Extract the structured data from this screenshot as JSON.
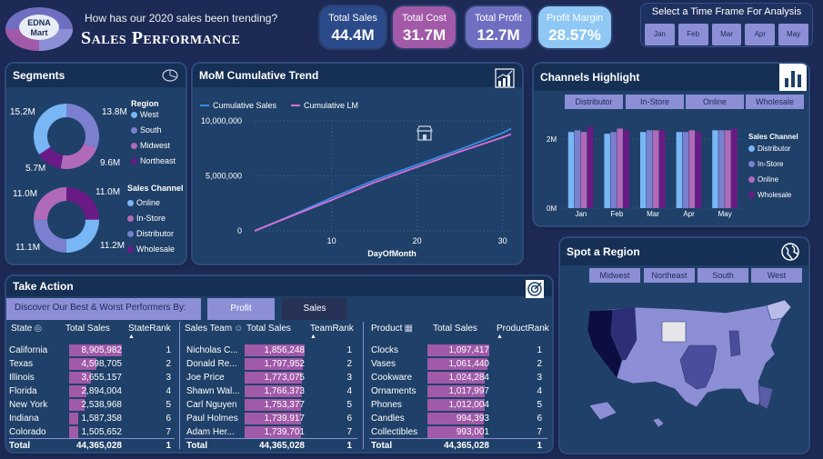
{
  "header": {
    "logo_line1": "EDNA",
    "logo_line2": "Mart",
    "question": "How has our 2020 sales been trending?",
    "title": "Sales Performance"
  },
  "kpis": [
    {
      "label": "Total Sales",
      "value": "44.4M",
      "bg": "#2b4a8a"
    },
    {
      "label": "Total Cost",
      "value": "31.7M",
      "bg": "#a25aa8"
    },
    {
      "label": "Total Profit",
      "value": "12.7M",
      "bg": "#6f6fc2"
    },
    {
      "label": "Profit Margin",
      "value": "28.57%",
      "bg": "#8fc8f4"
    }
  ],
  "timeframe": {
    "title": "Select a Time Frame For Analysis",
    "months": [
      "Jan",
      "Feb",
      "Mar",
      "Apr",
      "May"
    ]
  },
  "segments": {
    "title": "Segments",
    "region_title": "Region",
    "regions": [
      {
        "name": "West",
        "color": "#78b6f5"
      },
      {
        "name": "South",
        "color": "#7a7fd0"
      },
      {
        "name": "Midwest",
        "color": "#b06ab8"
      },
      {
        "name": "Northeast",
        "color": "#6a1a86"
      }
    ],
    "region_values": [
      "15.2M",
      "13.8M",
      "5.7M",
      "9.6M"
    ],
    "channel_title": "Sales Channel",
    "channels": [
      {
        "name": "Online",
        "color": "#78b6f5"
      },
      {
        "name": "In-Store",
        "color": "#b06ab8"
      },
      {
        "name": "Distributor",
        "color": "#7a7fd0"
      },
      {
        "name": "Wholesale",
        "color": "#6a1a86"
      }
    ],
    "channel_values": [
      "11.0M",
      "11.0M",
      "11.1M",
      "11.2M"
    ]
  },
  "mom": {
    "title": "MoM Cumulative Trend",
    "legend": [
      "Cumulative Sales",
      "Cumulative LM"
    ],
    "xlabel": "DayOfMonth"
  },
  "channels_highlight": {
    "title": "Channels Highlight",
    "filters": [
      "Distributor",
      "In-Store",
      "Online",
      "Wholesale"
    ],
    "legend_title": "Sales Channel",
    "legend": [
      "Distributor",
      "In-Store",
      "Online",
      "Wholesale"
    ]
  },
  "spot_region": {
    "title": "Spot a Region",
    "filters": [
      "Midwest",
      "Northeast",
      "South",
      "West"
    ]
  },
  "take_action": {
    "title": "Take Action",
    "discover": "Discover Our Best & Worst Performers By:",
    "tab_profit": "Profit",
    "tab_sales": "Sales",
    "state_table": {
      "headers": [
        "State",
        "Total Sales",
        "StateRank"
      ],
      "rows": [
        [
          "California",
          "8,905,982",
          "1"
        ],
        [
          "Texas",
          "4,598,705",
          "2"
        ],
        [
          "Illinois",
          "3,655,157",
          "3"
        ],
        [
          "Florida",
          "2,894,004",
          "4"
        ],
        [
          "New York",
          "2,538,968",
          "5"
        ],
        [
          "Indiana",
          "1,587,358",
          "6"
        ],
        [
          "Colorado",
          "1,505,652",
          "7"
        ]
      ],
      "total": [
        "Total",
        "44,365,028",
        "1"
      ]
    },
    "team_table": {
      "headers": [
        "Sales Team",
        "Total Sales",
        "TeamRank"
      ],
      "rows": [
        [
          "Nicholas C...",
          "1,856,248",
          "1"
        ],
        [
          "Donald Re...",
          "1,797,952",
          "2"
        ],
        [
          "Joe Price",
          "1,773,075",
          "3"
        ],
        [
          "Shawn Wal...",
          "1,766,373",
          "4"
        ],
        [
          "Carl Nguyen",
          "1,753,377",
          "5"
        ],
        [
          "Paul Holmes",
          "1,739,917",
          "6"
        ],
        [
          "Adam Her...",
          "1,739,701",
          "7"
        ]
      ],
      "total": [
        "Total",
        "44,365,028",
        "1"
      ]
    },
    "product_table": {
      "headers": [
        "Product",
        "Total Sales",
        "ProductRank"
      ],
      "rows": [
        [
          "Clocks",
          "1,097,417",
          "1"
        ],
        [
          "Vases",
          "1,061,440",
          "2"
        ],
        [
          "Cookware",
          "1,024,284",
          "3"
        ],
        [
          "Ornaments",
          "1,017,997",
          "4"
        ],
        [
          "Phones",
          "1,012,004",
          "5"
        ],
        [
          "Candles",
          "994,393",
          "6"
        ],
        [
          "Collectibles",
          "993,001",
          "7"
        ]
      ],
      "total": [
        "Total",
        "44,365,028",
        "1"
      ]
    }
  },
  "chart_data": [
    {
      "type": "line",
      "title": "MoM Cumulative Trend",
      "xlabel": "DayOfMonth",
      "ylabel": "",
      "ylim": [
        0,
        10000000
      ],
      "xlim": [
        1,
        31
      ],
      "yticks": [
        "0",
        "5,000,000",
        "10,000,000"
      ],
      "xticks": [
        "10",
        "20",
        "30"
      ],
      "x": [
        1,
        5,
        10,
        15,
        20,
        25,
        30,
        31
      ],
      "series": [
        {
          "name": "Cumulative Sales",
          "color": "#3a8ee6",
          "values": [
            0,
            1300000,
            3000000,
            4600000,
            6000000,
            7400000,
            8900000,
            9300000
          ]
        },
        {
          "name": "Cumulative LM",
          "color": "#d86fd8",
          "values": [
            0,
            1250000,
            2800000,
            4400000,
            5800000,
            7200000,
            8500000,
            8800000
          ]
        }
      ]
    },
    {
      "type": "bar",
      "title": "Channels Highlight",
      "categories": [
        "Jan",
        "Feb",
        "Mar",
        "Apr",
        "May"
      ],
      "ylim": [
        0,
        2600000
      ],
      "yticks": [
        "0M",
        "2M"
      ],
      "series": [
        {
          "name": "Distributor",
          "color": "#78b6f5",
          "values": [
            2200000,
            2150000,
            2200000,
            2200000,
            2250000
          ]
        },
        {
          "name": "In-Store",
          "color": "#7a7fd0",
          "values": [
            2250000,
            2200000,
            2250000,
            2200000,
            2250000
          ]
        },
        {
          "name": "Online",
          "color": "#b06ab8",
          "values": [
            2200000,
            2300000,
            2250000,
            2250000,
            2250000
          ]
        },
        {
          "name": "Wholesale",
          "color": "#6a1a86",
          "values": [
            2350000,
            2250000,
            2250000,
            2200000,
            2300000
          ]
        }
      ]
    }
  ]
}
